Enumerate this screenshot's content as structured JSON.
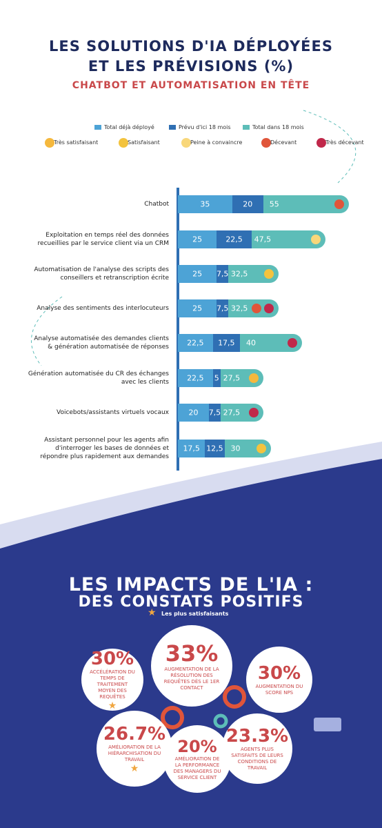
{
  "chart_data": {
    "type": "stacked-bar",
    "title": [
      "LES SOLUTIONS D'IA DÉPLOYÉES",
      "ET LES PRÉVISIONS (%)"
    ],
    "subtitle": "CHATBOT ET AUTOMATISATION EN TÊTE",
    "categories": [
      "Chatbot",
      "Exploitation en temps réel des données recueillies par le service client via un CRM",
      "Automatisation de l'analyse des scripts des conseillers et retranscription écrite",
      "Analyse des sentiments des interlocuteurs",
      "Analyse automatisée des demandes clients & génération automatisée de réponses",
      "Génération automatisée du CR des échanges avec les clients",
      "Voicebots/assistants virtuels vocaux",
      "Assistant personnel pour les agents afin d'interroger les bases de données et répondre plus rapidement aux demandes"
    ],
    "series": [
      {
        "name": "Total déjà déployé",
        "color": "#4da3d6",
        "values": [
          35,
          25,
          25,
          25,
          22.5,
          22.5,
          20,
          17.5
        ],
        "value_labels": [
          "35",
          "25",
          "25",
          "25",
          "22,5",
          "22,5",
          "20",
          "17,5"
        ]
      },
      {
        "name": "Prévu d'ici 18 mois",
        "color": "#2f6fb3",
        "values": [
          20,
          22.5,
          7.5,
          7.5,
          17.5,
          5,
          7.5,
          12.5
        ],
        "value_labels": [
          "20",
          "22,5",
          "7,5",
          "7,5",
          "17,5",
          "5",
          "7,5",
          "12,5"
        ]
      },
      {
        "name": "Total dans 18 mois",
        "color": "#5dbdb8",
        "values": [
          55,
          47.5,
          32.5,
          32.5,
          40,
          27.5,
          27.5,
          30
        ],
        "value_labels": [
          "55",
          "47,5",
          "32,5",
          "32,5",
          "40",
          "27,5",
          "27,5",
          "30"
        ]
      }
    ],
    "rating_legend": [
      "Très satisfaisant",
      "Satisfaisant",
      "Peine à convaincre",
      "Décevant",
      "Très décevant"
    ]
  },
  "impacts": {
    "title": [
      "LES IMPACTS DE L'IA :",
      "DES CONSTATS POSITIFS"
    ],
    "star_legend": "Les plus satisfaisants",
    "items": [
      {
        "value": "30%",
        "text": "ACCÉLÉRATION DU TEMPS DE TRAITEMENT MOYEN DES REQUÊTES"
      },
      {
        "value": "33%",
        "text": "AUGMENTATION DE LA RÉSOLUTION DES REQUÊTES DÈS LE 1ER CONTACT"
      },
      {
        "value": "30%",
        "text": "AUGMENTATION DU SCORE NPS"
      },
      {
        "value": "26.7%",
        "text": "AMÉLIORATION DE LA HIÉRARCHISATION DU TRAVAIL"
      },
      {
        "value": "20%",
        "text": "AMÉLIORATION DE LA PERFORMANCE DES MANAGERS DU SERVICE CLIENT"
      },
      {
        "value": "23.3%",
        "text": "AGENTS PLUS SATISFAITS DE LEURS CONDITIONS DE TRAVAIL"
      }
    ]
  }
}
